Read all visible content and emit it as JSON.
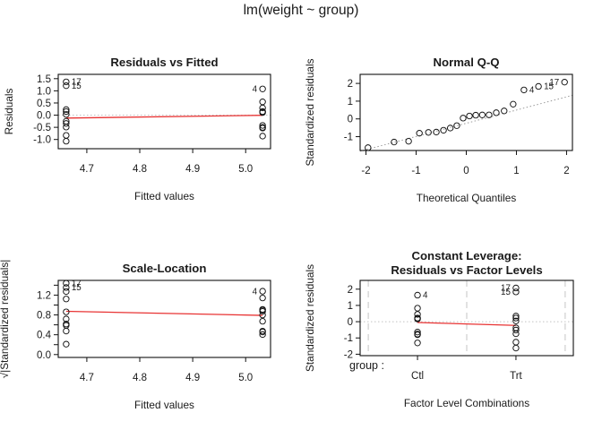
{
  "figure_title": "lm(weight ~ group)",
  "colors": {
    "trend_line": "#e83333",
    "reference_line": "#999999",
    "zero_line_dotted": "#c2c2c2",
    "level_separator_dashed": "#d2d2d2",
    "points": "#111111",
    "frame": "#111111"
  },
  "chart_data": [
    {
      "id": "residuals-vs-fitted",
      "type": "scatter",
      "title": "Residuals vs Fitted",
      "xlabel": "Fitted values",
      "ylabel": "Residuals",
      "xlim": [
        4.646,
        5.047
      ],
      "ylim": [
        -1.379,
        1.677
      ],
      "xticks": {
        "values": [
          4.7,
          4.8,
          4.9,
          5.0
        ],
        "labels": [
          "4.7",
          "4.8",
          "4.9",
          "5.0"
        ]
      },
      "yticks": {
        "values": [
          -1.0,
          -0.5,
          0.0,
          0.5,
          1.0,
          1.5
        ],
        "labels": [
          "-1.0",
          "-0.5",
          "0.0",
          "0.5",
          "1.0",
          "1.5"
        ]
      },
      "points": {
        "x": [
          5.032,
          5.032,
          5.032,
          5.032,
          5.032,
          5.032,
          5.032,
          5.032,
          5.032,
          5.032,
          4.661,
          4.661,
          4.661,
          4.661,
          4.661,
          4.661,
          4.661,
          4.661,
          4.661,
          4.661
        ],
        "y": [
          -0.862,
          0.548,
          0.148,
          1.078,
          -0.532,
          -0.422,
          0.138,
          -0.502,
          0.298,
          0.108,
          0.149,
          -0.491,
          -0.251,
          -1.071,
          1.209,
          -0.831,
          1.369,
          0.229,
          -0.341,
          0.029
        ]
      },
      "point_labels": [
        {
          "text": "17",
          "x": 4.661,
          "y": 1.369,
          "side": "right"
        },
        {
          "text": "15",
          "x": 4.661,
          "y": 1.209,
          "side": "right"
        },
        {
          "text": "4",
          "x": 5.032,
          "y": 1.078,
          "side": "left"
        }
      ],
      "zero_line": true,
      "trend": {
        "x": [
          4.661,
          5.032
        ],
        "y": [
          -0.121,
          -0.005
        ]
      }
    },
    {
      "id": "normal-qq",
      "type": "scatter",
      "title": "Normal Q-Q",
      "xlabel": "Theoretical Quantiles",
      "ylabel": "Standardized residuals",
      "xlim": [
        -2.117,
        2.117
      ],
      "ylim": [
        -1.78,
        2.51
      ],
      "xticks": {
        "values": [
          -2,
          -1,
          0,
          1,
          2
        ],
        "labels": [
          "-2",
          "-1",
          "0",
          "1",
          "2"
        ]
      },
      "yticks": {
        "values": [
          -1,
          0,
          1,
          2
        ],
        "labels": [
          "-1",
          "0",
          "1",
          "2"
        ]
      },
      "points": {
        "x": [
          -1.96,
          -1.44,
          -1.15,
          -0.935,
          -0.755,
          -0.598,
          -0.454,
          -0.319,
          -0.189,
          -0.063,
          0.063,
          0.189,
          0.319,
          0.454,
          0.598,
          0.755,
          0.935,
          1.15,
          1.44,
          1.96
        ],
        "y": [
          -1.621,
          -1.305,
          -1.258,
          -0.805,
          -0.76,
          -0.743,
          -0.639,
          -0.516,
          -0.38,
          0.044,
          0.163,
          0.209,
          0.224,
          0.226,
          0.347,
          0.451,
          0.83,
          1.632,
          1.83,
          2.072
        ]
      },
      "point_labels": [
        {
          "text": "4",
          "x": 1.15,
          "y": 1.632,
          "side": "right"
        },
        {
          "text": "15",
          "x": 1.44,
          "y": 1.83,
          "side": "right"
        },
        {
          "text": "17",
          "x": 1.96,
          "y": 2.072,
          "side": "left"
        }
      ],
      "ref_line": {
        "x": [
          -2.117,
          2.117
        ],
        "y": [
          -1.821,
          1.33
        ]
      }
    },
    {
      "id": "scale-location",
      "type": "scatter",
      "title": "Scale-Location",
      "xlabel": "Fitted values",
      "ylabel": "√|Standardized residuals|",
      "ylabel_radical": true,
      "xlim": [
        4.646,
        5.047
      ],
      "ylim": [
        -0.058,
        1.497
      ],
      "xticks": {
        "values": [
          4.7,
          4.8,
          4.9,
          5.0
        ],
        "labels": [
          "4.7",
          "4.8",
          "4.9",
          "5.0"
        ]
      },
      "yticks": {
        "values": [
          0.0,
          0.2,
          0.4,
          0.6,
          0.8,
          1.0,
          1.2,
          1.4
        ],
        "labels": [
          "0.0",
          "",
          "0.4",
          "",
          "0.8",
          "",
          "1.2",
          ""
        ]
      },
      "points": {
        "x": [
          5.032,
          5.032,
          5.032,
          5.032,
          5.032,
          5.032,
          5.032,
          5.032,
          5.032,
          5.032,
          4.661,
          4.661,
          4.661,
          4.661,
          4.661,
          4.661,
          4.661,
          4.661,
          4.661,
          4.661
        ],
        "y": [
          1.142,
          0.911,
          0.473,
          1.278,
          0.897,
          0.799,
          0.457,
          0.872,
          0.672,
          0.404,
          0.475,
          0.862,
          0.616,
          1.273,
          1.353,
          1.122,
          1.439,
          0.589,
          0.718,
          0.21
        ]
      },
      "point_labels": [
        {
          "text": "17",
          "x": 4.661,
          "y": 1.439,
          "side": "right"
        },
        {
          "text": "15",
          "x": 4.661,
          "y": 1.353,
          "side": "right"
        },
        {
          "text": "4",
          "x": 5.032,
          "y": 1.278,
          "side": "left"
        }
      ],
      "trend": {
        "x": [
          4.661,
          5.032
        ],
        "y": [
          0.873,
          0.791
        ]
      }
    },
    {
      "id": "residuals-vs-factor-levels",
      "type": "scatter",
      "title_lines": [
        "Constant Leverage:",
        "Residuals vs Factor Levels"
      ],
      "xlabel": "Factor Level Combinations",
      "ylabel": "Standardized residuals",
      "group_label": "group :",
      "xlim": [
        0.417,
        2.583
      ],
      "ylim": [
        -2.088,
        2.539
      ],
      "xticks": {
        "values": [
          1,
          2
        ],
        "labels": [
          "Ctl",
          "Trt"
        ]
      },
      "yticks": {
        "values": [
          -2,
          -1,
          0,
          1,
          2
        ],
        "labels": [
          "-2",
          "-1",
          "0",
          "1",
          "2"
        ]
      },
      "separators": [
        0.5,
        1.5,
        2.5
      ],
      "points": {
        "x": [
          1,
          1,
          1,
          1,
          1,
          1,
          1,
          1,
          1,
          1,
          2,
          2,
          2,
          2,
          2,
          2,
          2,
          2,
          2,
          2
        ],
        "y": [
          -1.305,
          0.83,
          0.224,
          1.632,
          -0.805,
          -0.639,
          0.209,
          -0.76,
          0.451,
          0.163,
          0.226,
          -0.743,
          -0.38,
          -1.621,
          1.83,
          -1.258,
          2.072,
          0.347,
          -0.516,
          0.044
        ]
      },
      "point_labels": [
        {
          "text": "4",
          "x": 1,
          "y": 1.632,
          "side": "right"
        },
        {
          "text": "17",
          "x": 2,
          "y": 2.072,
          "side": "left"
        },
        {
          "text": "15",
          "x": 2,
          "y": 1.83,
          "side": "left"
        }
      ],
      "zero_line": true,
      "trend": {
        "x": [
          1,
          2
        ],
        "y": [
          -0.05,
          -0.23
        ]
      }
    }
  ]
}
